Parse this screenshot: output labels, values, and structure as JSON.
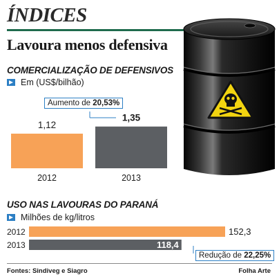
{
  "header": {
    "section": "ÍNDICES",
    "headline": "Lavoura menos defensiva"
  },
  "colors": {
    "orange": "#f7a257",
    "gray": "#5c5f63",
    "accent_blue": "#2c7fc4",
    "rule_green": "#1f6b4d"
  },
  "chart_data": [
    {
      "type": "bar",
      "title": "COMERCIALIZAÇÃO DE DEFENSIVOS",
      "unit": "Em (US$/bilhão)",
      "categories": [
        "2012",
        "2013"
      ],
      "values": [
        1.12,
        1.35
      ],
      "value_labels": [
        "1,12",
        "1,35"
      ],
      "annotation": {
        "prefix": "Aumento de ",
        "value": "20,53%"
      }
    },
    {
      "type": "bar",
      "orientation": "horizontal",
      "title": "USO NAS LAVOURAS DO PARANÁ",
      "unit": "Milhões de kg/litros",
      "categories": [
        "2012",
        "2013"
      ],
      "values": [
        152.3,
        118.4
      ],
      "value_labels": [
        "152,3",
        "118,4"
      ],
      "annotation": {
        "prefix": "Redução de ",
        "value": "22,25%"
      }
    }
  ],
  "footer": {
    "sources": "Fontes: Sindiveg e Siagro",
    "credit": "Folha Arte"
  }
}
